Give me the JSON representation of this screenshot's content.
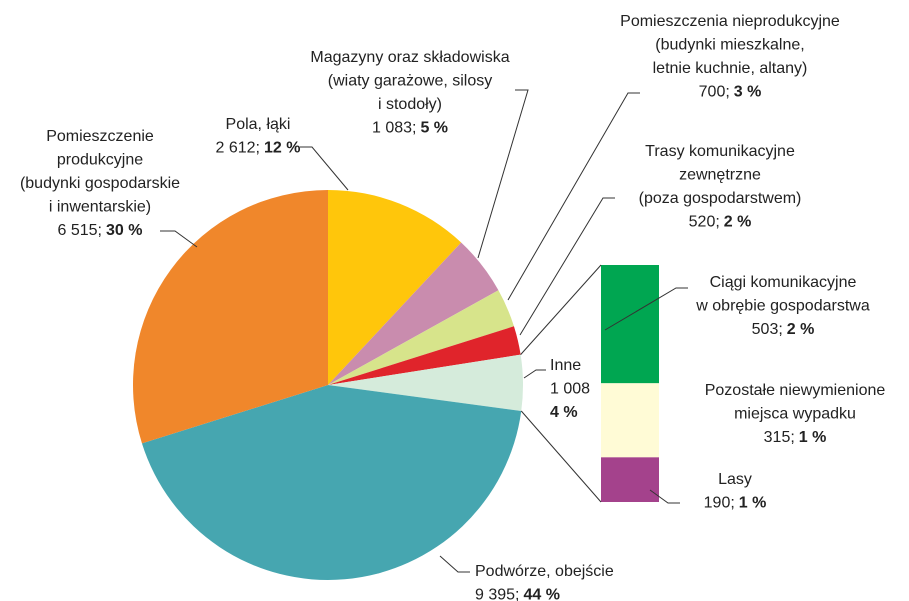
{
  "chart_data": {
    "type": "pie",
    "categories": [
      [
        "Pola, łąki"
      ],
      [
        "Magazyny oraz składowiska",
        "(wiaty garażowe, silosy",
        "i stodoły)"
      ],
      [
        "Pomieszczenia nieprodukcyjne",
        "(budynki mieszkalne,",
        "letnie kuchnie, altany)"
      ],
      [
        "Trasy komunikacyjne",
        "zewnętrzne",
        "(poza gospodarstwem)"
      ],
      [
        "Inne"
      ],
      [
        "Podwórze, obejście"
      ],
      [
        "Pomieszczenie",
        "produkcyjne",
        "(budynki gospodarskie",
        "i inwentarskie)"
      ]
    ],
    "values": [
      2612,
      1083,
      700,
      520,
      1008,
      9395,
      6515
    ],
    "value_labels": [
      "2 612;",
      "1 083;",
      "700;",
      "520;",
      "1 008",
      "9 395;",
      "6 515;"
    ],
    "percents": [
      12,
      5,
      3,
      2,
      4,
      44,
      30
    ],
    "percent_labels": [
      "12 %",
      "5 %",
      "3 %",
      "2 %",
      "4 %",
      "44 %",
      "30 %"
    ],
    "colors": [
      "#ffc60b",
      "#c98cae",
      "#d7e48b",
      "#e0242b",
      "#d5ebdb",
      "#46a6b0",
      "#f0872b"
    ],
    "sub": {
      "categories": [
        [
          "Ciągi komunikacyjne",
          "w obrębie gospodarstwa"
        ],
        [
          "Pozostałe niewymienione",
          "miejsca wypadku"
        ],
        [
          "Lasy"
        ]
      ],
      "values": [
        503,
        315,
        190
      ],
      "value_labels": [
        "503;",
        "315;",
        "190;"
      ],
      "percents": [
        2,
        1,
        1
      ],
      "percent_labels": [
        "2 %",
        "1 %",
        "1 %"
      ],
      "colors": [
        "#00a651",
        "#fffbd6",
        "#a4428c"
      ]
    }
  }
}
